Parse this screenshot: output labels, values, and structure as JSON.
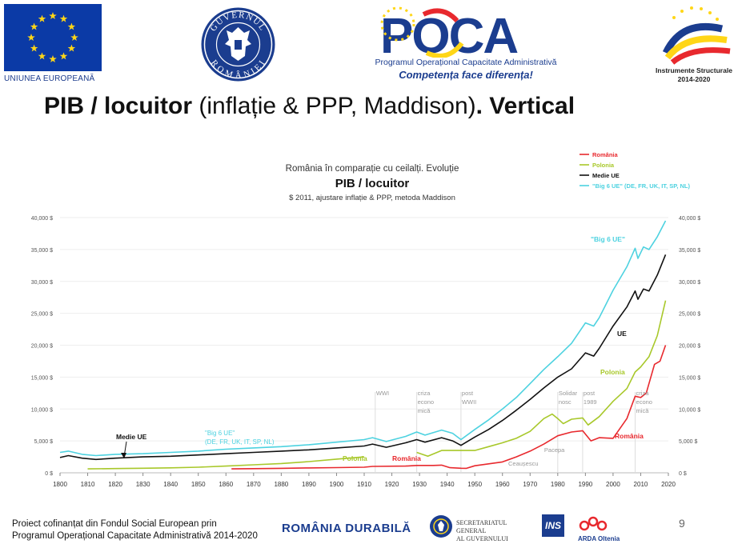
{
  "header": {
    "eu_label": "UNIUNEA EUROPEANĂ",
    "gov_ring_top": "GUVERNUL",
    "gov_ring_bottom": "ROMÂNIEI",
    "poca_brand": "POCA",
    "poca_line1": "Programul Operațional Capacitate Administrativă",
    "poca_line2": "Competența face diferența!",
    "is_line1": "Instrumente Structurale",
    "is_line2": "2014-2020"
  },
  "slide_title": {
    "bold_part": "PIB / locuitor",
    "normal_part": " (inflație & PPP, Maddison)",
    "bold_end": ". Vertical"
  },
  "chart_data": {
    "type": "line",
    "title": "PIB / locuitor",
    "subtitle_top": "România în comparație cu ceilalți. Evoluție",
    "subtitle_bottom": "$ 2011, ajustare inflație & PPP, metoda Maddison",
    "x_ticks": [
      1800,
      1810,
      1820,
      1830,
      1840,
      1850,
      1860,
      1870,
      1880,
      1890,
      1900,
      1910,
      1920,
      1930,
      1940,
      1950,
      1960,
      1970,
      1980,
      1990,
      2000,
      2010,
      2020
    ],
    "y_ticks": [
      0,
      5000,
      10000,
      15000,
      20000,
      25000,
      30000,
      35000,
      40000
    ],
    "y_tick_labels": [
      "0 $",
      "5,000 $",
      "10,000 $",
      "15,000 $",
      "20,000 $",
      "25,000 $",
      "30,000 $",
      "35,000 $",
      "40,000 $"
    ],
    "xlim": [
      1800,
      2020
    ],
    "ylim": [
      0,
      40000
    ],
    "legend_position": "top-right",
    "series": [
      {
        "name": "România",
        "color": "#e8292e",
        "points": [
          [
            1862,
            620
          ],
          [
            1870,
            650
          ],
          [
            1880,
            700
          ],
          [
            1890,
            760
          ],
          [
            1900,
            810
          ],
          [
            1910,
            880
          ],
          [
            1913,
            1000
          ],
          [
            1925,
            1050
          ],
          [
            1929,
            1150
          ],
          [
            1935,
            1150
          ],
          [
            1938,
            1200
          ],
          [
            1941,
            800
          ],
          [
            1945,
            720
          ],
          [
            1947,
            700
          ],
          [
            1950,
            1100
          ],
          [
            1955,
            1400
          ],
          [
            1960,
            1700
          ],
          [
            1965,
            2500
          ],
          [
            1970,
            3400
          ],
          [
            1975,
            4500
          ],
          [
            1980,
            5800
          ],
          [
            1985,
            6400
          ],
          [
            1989,
            6600
          ],
          [
            1992,
            5000
          ],
          [
            1995,
            5500
          ],
          [
            2000,
            5400
          ],
          [
            2005,
            8500
          ],
          [
            2008,
            12000
          ],
          [
            2010,
            11800
          ],
          [
            2012,
            12500
          ],
          [
            2015,
            17000
          ],
          [
            2017,
            17500
          ],
          [
            2019,
            20000
          ]
        ]
      },
      {
        "name": "Polonia",
        "color": "#a8c82a",
        "points": [
          [
            1810,
            620
          ],
          [
            1820,
            660
          ],
          [
            1830,
            720
          ],
          [
            1840,
            780
          ],
          [
            1850,
            880
          ],
          [
            1860,
            1050
          ],
          [
            1870,
            1250
          ],
          [
            1880,
            1450
          ],
          [
            1890,
            1750
          ],
          [
            1900,
            2150
          ],
          [
            1910,
            2500
          ],
          [
            1929,
            3200
          ],
          [
            1933,
            2600
          ],
          [
            1938,
            3500
          ],
          [
            1950,
            3500
          ],
          [
            1955,
            4100
          ],
          [
            1960,
            4700
          ],
          [
            1965,
            5400
          ],
          [
            1970,
            6500
          ],
          [
            1975,
            8500
          ],
          [
            1978,
            9200
          ],
          [
            1980,
            8500
          ],
          [
            1982,
            7700
          ],
          [
            1985,
            8400
          ],
          [
            1989,
            8600
          ],
          [
            1991,
            7500
          ],
          [
            1995,
            8800
          ],
          [
            2000,
            11200
          ],
          [
            2005,
            13200
          ],
          [
            2008,
            15800
          ],
          [
            2010,
            16600
          ],
          [
            2013,
            18200
          ],
          [
            2016,
            21500
          ],
          [
            2019,
            27000
          ]
        ]
      },
      {
        "name": "Medie UE",
        "color": "#111111",
        "points": [
          [
            1800,
            2400
          ],
          [
            1803,
            2700
          ],
          [
            1808,
            2300
          ],
          [
            1813,
            2100
          ],
          [
            1820,
            2300
          ],
          [
            1830,
            2500
          ],
          [
            1840,
            2600
          ],
          [
            1850,
            2800
          ],
          [
            1860,
            3000
          ],
          [
            1870,
            3200
          ],
          [
            1880,
            3400
          ],
          [
            1890,
            3600
          ],
          [
            1900,
            3900
          ],
          [
            1910,
            4200
          ],
          [
            1913,
            4500
          ],
          [
            1918,
            4000
          ],
          [
            1925,
            4700
          ],
          [
            1929,
            5200
          ],
          [
            1932,
            4800
          ],
          [
            1938,
            5500
          ],
          [
            1942,
            5000
          ],
          [
            1945,
            4300
          ],
          [
            1950,
            5600
          ],
          [
            1955,
            6800
          ],
          [
            1960,
            8200
          ],
          [
            1965,
            9800
          ],
          [
            1970,
            11500
          ],
          [
            1975,
            13300
          ],
          [
            1980,
            15000
          ],
          [
            1985,
            16300
          ],
          [
            1990,
            18800
          ],
          [
            1993,
            18300
          ],
          [
            1995,
            19500
          ],
          [
            2000,
            23000
          ],
          [
            2005,
            26000
          ],
          [
            2008,
            28500
          ],
          [
            2009,
            27200
          ],
          [
            2011,
            28800
          ],
          [
            2013,
            28500
          ],
          [
            2016,
            31000
          ],
          [
            2019,
            34200
          ]
        ]
      },
      {
        "name": "\"Big 6 UE\" (DE, FR, UK, IT, SP, NL)",
        "color": "#4dd2e0",
        "points": [
          [
            1800,
            3200
          ],
          [
            1803,
            3400
          ],
          [
            1808,
            2900
          ],
          [
            1813,
            2700
          ],
          [
            1820,
            2900
          ],
          [
            1830,
            3000
          ],
          [
            1840,
            3200
          ],
          [
            1850,
            3400
          ],
          [
            1860,
            3700
          ],
          [
            1870,
            3900
          ],
          [
            1880,
            4100
          ],
          [
            1890,
            4400
          ],
          [
            1900,
            4800
          ],
          [
            1910,
            5200
          ],
          [
            1913,
            5500
          ],
          [
            1918,
            4900
          ],
          [
            1925,
            5700
          ],
          [
            1929,
            6400
          ],
          [
            1932,
            5900
          ],
          [
            1938,
            6700
          ],
          [
            1942,
            6200
          ],
          [
            1945,
            5200
          ],
          [
            1950,
            6800
          ],
          [
            1955,
            8300
          ],
          [
            1960,
            10000
          ],
          [
            1965,
            11800
          ],
          [
            1970,
            14000
          ],
          [
            1975,
            16200
          ],
          [
            1980,
            18200
          ],
          [
            1985,
            20300
          ],
          [
            1990,
            23500
          ],
          [
            1993,
            23000
          ],
          [
            1995,
            24300
          ],
          [
            2000,
            28600
          ],
          [
            2005,
            32300
          ],
          [
            2008,
            35200
          ],
          [
            2009,
            33600
          ],
          [
            2011,
            35400
          ],
          [
            2013,
            35000
          ],
          [
            2016,
            37000
          ],
          [
            2019,
            39500
          ]
        ]
      }
    ],
    "annotations": [
      {
        "text": "WWI",
        "x": 1914
      },
      {
        "text": "criza",
        "x": 1929,
        "line2": "econo",
        "line3": "mică"
      },
      {
        "text": "post",
        "x": 1945,
        "line2": "WWII"
      },
      {
        "text": "Solidar",
        "x": 1980,
        "line2": "nosc"
      },
      {
        "text": "post",
        "x": 1989,
        "line2": "1989"
      },
      {
        "text": "criza",
        "x": 2008,
        "line2": "econo",
        "line3": "mică"
      },
      {
        "text": "Ceaușescu",
        "x": 1965
      },
      {
        "text": "Pacepa",
        "x": 1978
      }
    ],
    "series_labels": {
      "big6_1": "\"Big 6 UE\"",
      "big6_2": "(DE, FR, UK, IT, SP, NL)",
      "big6_top": "\"Big 6 UE\"",
      "ue_right": "UE",
      "medie_ue_left": "Medie UE",
      "polonia_mid": "Polonia",
      "romania_mid": "România",
      "polonia_right": "Polonia",
      "romania_right": "România"
    }
  },
  "footer": {
    "line1": "Proiect cofinanțat din Fondul Social European prin",
    "line2": "Programul Operațional Capacitate Administrativă 2014-2020",
    "romania_durabila": "ROMÂNIA DURABILĂ",
    "sgg_line1": "SECRETARIATUL GENERAL",
    "sgg_line2": "AL GUVERNULUI",
    "ins": "INS",
    "arda": "ARDA Oltenia",
    "page_number": "9"
  }
}
